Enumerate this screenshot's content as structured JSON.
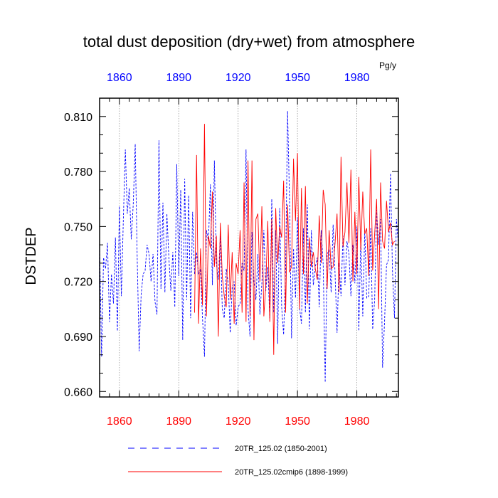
{
  "chart_data": {
    "type": "line",
    "title": "total dust deposition (dry+wet) from atmosphere",
    "units_label": "Pg/y",
    "ylabel": "DSTDEP",
    "xlabel": "",
    "xlim": [
      1850,
      2001
    ],
    "ylim": [
      0.657,
      0.82
    ],
    "x_ticks": [
      1860,
      1890,
      1920,
      1950,
      1980
    ],
    "x_tick_labels": [
      "1860",
      "1890",
      "1920",
      "1950",
      "1980"
    ],
    "y_ticks": [
      0.66,
      0.69,
      0.72,
      0.75,
      0.78,
      0.81
    ],
    "y_tick_labels": [
      "0.660",
      "0.690",
      "0.720",
      "0.750",
      "0.780",
      "0.810"
    ],
    "grid": "vertical dotted lines at major x ticks",
    "colors": {
      "bottom_ticks": "#ff0000",
      "top_ticks": "#0000ff",
      "series_blue": "#0000ff",
      "series_red": "#ff0000"
    },
    "series": [
      {
        "name": "20TR_125.02 (1850-2001)",
        "style": "dashed",
        "color": "#0000ff",
        "x_start": 1850,
        "values": [
          0.741,
          0.679,
          0.733,
          0.727,
          0.741,
          0.698,
          0.724,
          0.708,
          0.744,
          0.693,
          0.761,
          0.712,
          0.754,
          0.792,
          0.757,
          0.771,
          0.743,
          0.762,
          0.795,
          0.733,
          0.682,
          0.713,
          0.724,
          0.726,
          0.74,
          0.735,
          0.72,
          0.735,
          0.709,
          0.702,
          0.797,
          0.716,
          0.763,
          0.714,
          0.757,
          0.733,
          0.715,
          0.736,
          0.706,
          0.784,
          0.723,
          0.77,
          0.688,
          0.776,
          0.71,
          0.767,
          0.7,
          0.758,
          0.724,
          0.736,
          0.724,
          0.727,
          0.7,
          0.679,
          0.748,
          0.742,
          0.773,
          0.718,
          0.786,
          0.73,
          0.721,
          0.745,
          0.705,
          0.7,
          0.727,
          0.719,
          0.692,
          0.717,
          0.72,
          0.696,
          0.706,
          0.708,
          0.73,
          0.726,
          0.792,
          0.705,
          0.69,
          0.747,
          0.72,
          0.71,
          0.735,
          0.702,
          0.719,
          0.748,
          0.715,
          0.728,
          0.7,
          0.765,
          0.703,
          0.748,
          0.686,
          0.76,
          0.706,
          0.691,
          0.727,
          0.813,
          0.763,
          0.689,
          0.738,
          0.711,
          0.755,
          0.706,
          0.697,
          0.749,
          0.703,
          0.762,
          0.694,
          0.748,
          0.718,
          0.728,
          0.733,
          0.706,
          0.748,
          0.729,
          0.665,
          0.735,
          0.737,
          0.714,
          0.751,
          0.724,
          0.692,
          0.73,
          0.712,
          0.745,
          0.718,
          0.742,
          0.735,
          0.712,
          0.74,
          0.719,
          0.75,
          0.693,
          0.744,
          0.701,
          0.748,
          0.711,
          0.712,
          0.749,
          0.694,
          0.71,
          0.759,
          0.74,
          0.754,
          0.673,
          0.698,
          0.729,
          0.732,
          0.779,
          0.726,
          0.7,
          0.754,
          0.74
        ]
      },
      {
        "name": "20TR_125.02cmip6 (1898-1999)",
        "style": "solid",
        "color": "#ff0000",
        "x_start": 1898,
        "values": [
          0.703,
          0.789,
          0.697,
          0.738,
          0.707,
          0.806,
          0.701,
          0.745,
          0.738,
          0.769,
          0.728,
          0.745,
          0.69,
          0.752,
          0.723,
          0.712,
          0.706,
          0.751,
          0.71,
          0.736,
          0.697,
          0.73,
          0.724,
          0.748,
          0.703,
          0.774,
          0.698,
          0.786,
          0.701,
          0.786,
          0.688,
          0.754,
          0.757,
          0.72,
          0.761,
          0.701,
          0.718,
          0.753,
          0.698,
          0.754,
          0.68,
          0.76,
          0.73,
          0.75,
          0.744,
          0.775,
          0.703,
          0.762,
          0.725,
          0.728,
          0.787,
          0.753,
          0.79,
          0.705,
          0.771,
          0.724,
          0.772,
          0.708,
          0.744,
          0.728,
          0.736,
          0.727,
          0.721,
          0.756,
          0.73,
          0.77,
          0.762,
          0.716,
          0.748,
          0.727,
          0.728,
          0.741,
          0.757,
          0.714,
          0.788,
          0.739,
          0.747,
          0.774,
          0.741,
          0.781,
          0.72,
          0.758,
          0.724,
          0.777,
          0.737,
          0.769,
          0.746,
          0.749,
          0.723,
          0.792,
          0.726,
          0.746,
          0.765,
          0.705,
          0.774,
          0.742,
          0.738,
          0.764,
          0.747,
          0.752,
          0.74,
          0.742
        ]
      }
    ],
    "legend": [
      {
        "label": "20TR_125.02 (1850-2001)",
        "style": "dashed",
        "color": "#0000ff"
      },
      {
        "label": "20TR_125.02cmip6 (1898-1999)",
        "style": "solid",
        "color": "#ff0000"
      }
    ],
    "legend_position": "bottom-center"
  }
}
